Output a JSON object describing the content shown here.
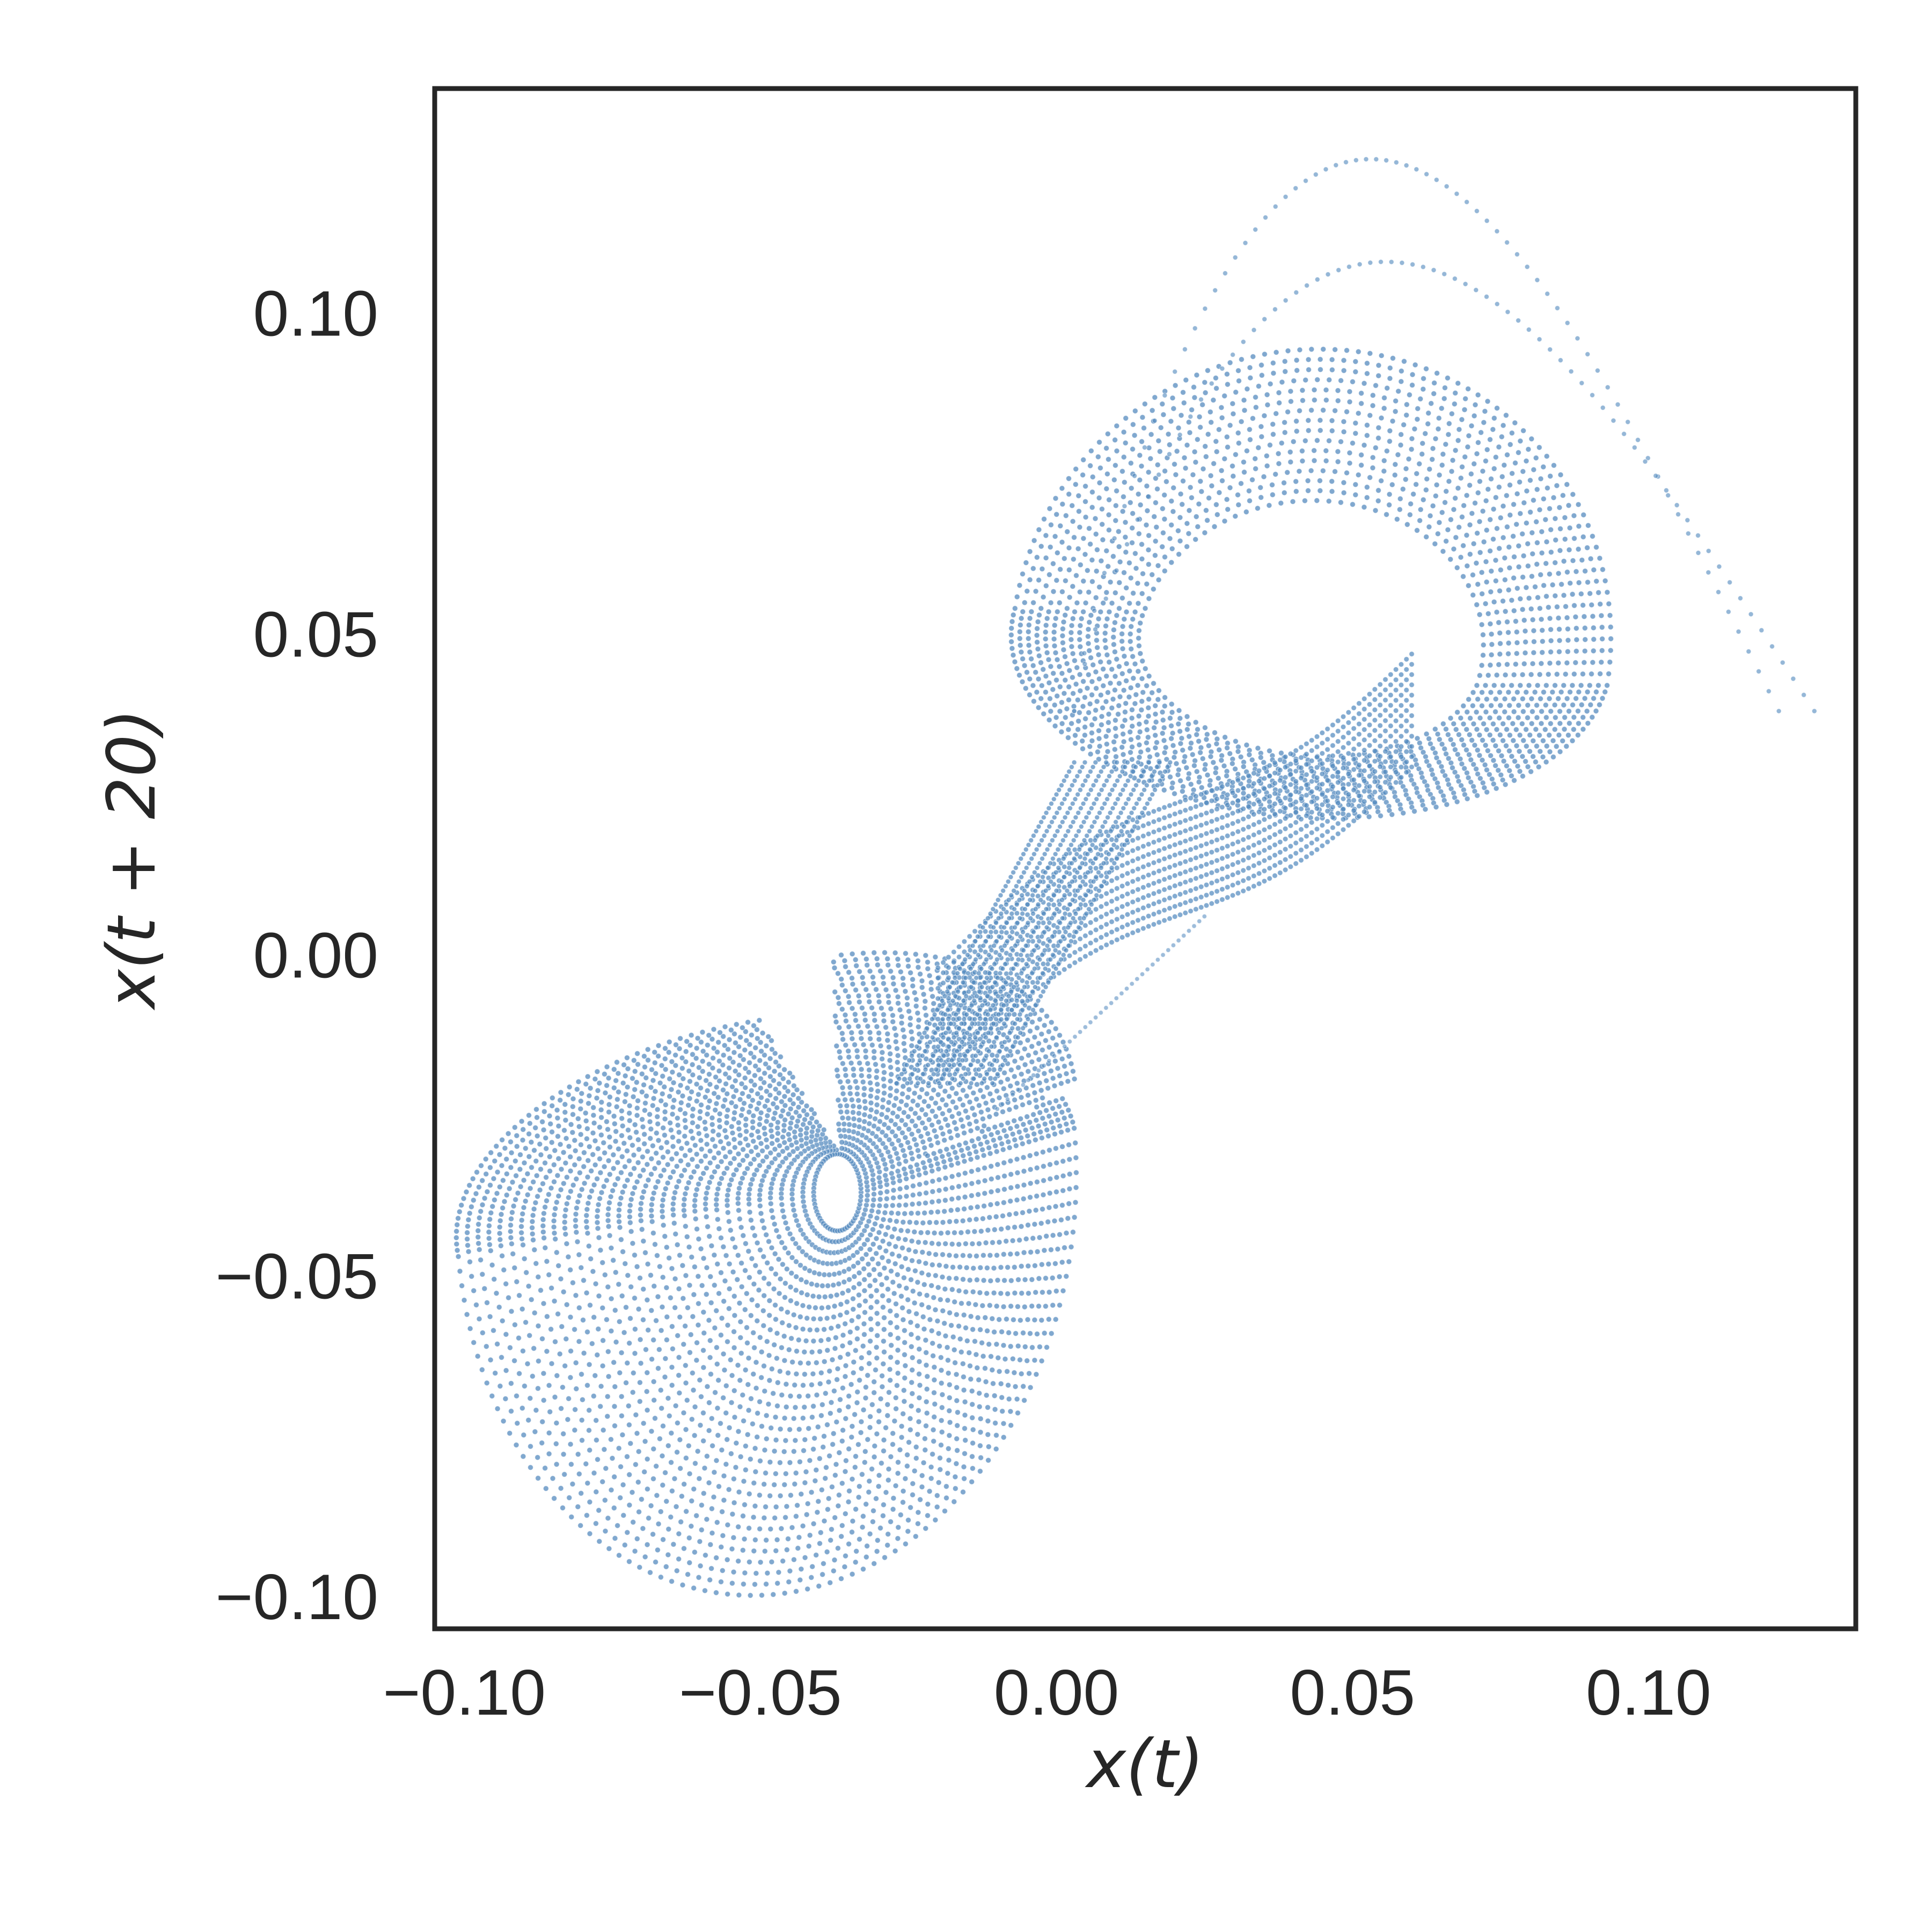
{
  "chart_data": {
    "type": "scatter",
    "title": "",
    "xlabel": "x(t)",
    "ylabel": "x(t + 20)",
    "xlim": [
      -0.105,
      0.135
    ],
    "ylim": [
      -0.105,
      0.135
    ],
    "x_ticks": [
      -0.1,
      -0.05,
      0.0,
      0.05,
      0.1
    ],
    "y_ticks": [
      -0.1,
      -0.05,
      0.0,
      0.05,
      0.1
    ],
    "x_tick_labels": [
      "−0.10",
      "−0.05",
      "0.00",
      "0.05",
      "0.10"
    ],
    "y_tick_labels": [
      "−0.10",
      "−0.05",
      "0.00",
      "0.05",
      "0.10"
    ],
    "grid": false,
    "marker_color": "#4f87bd",
    "marker_edge_color": "#ffffff",
    "description_points": {
      "lower_lobe_center": [
        -0.037,
        -0.037
      ],
      "lower_lobe_extent_x": [
        -0.096,
        -0.007
      ],
      "lower_lobe_extent_y": [
        -0.094,
        -0.012
      ],
      "upper_lobe_center": [
        0.043,
        0.048
      ],
      "upper_lobe_extent_x": [
        0.003,
        0.125
      ],
      "upper_lobe_extent_y": [
        0.022,
        0.124
      ],
      "crossing_point": [
        0.01,
        0.012
      ]
    },
    "series": [
      {
        "points_sample": [
          [
            -0.037,
            -0.037
          ],
          [
            -0.045,
            -0.03
          ],
          [
            -0.05,
            -0.04
          ],
          [
            -0.06,
            -0.045
          ],
          [
            -0.07,
            -0.05
          ],
          [
            -0.08,
            -0.055
          ],
          [
            -0.09,
            -0.055
          ],
          [
            -0.095,
            -0.045
          ],
          [
            -0.09,
            -0.04
          ],
          [
            -0.08,
            -0.035
          ],
          [
            -0.06,
            -0.031
          ],
          [
            -0.04,
            -0.02
          ],
          [
            -0.02,
            -0.005
          ],
          [
            0.0,
            0.007
          ],
          [
            0.01,
            0.012
          ],
          [
            0.02,
            0.014
          ],
          [
            0.035,
            0.025
          ],
          [
            0.05,
            0.035
          ],
          [
            0.065,
            0.04
          ],
          [
            0.075,
            0.05
          ],
          [
            0.07,
            0.065
          ],
          [
            0.055,
            0.078
          ],
          [
            0.04,
            0.081
          ],
          [
            0.025,
            0.07
          ],
          [
            0.015,
            0.05
          ],
          [
            0.01,
            0.025
          ],
          [
            0.008,
            0.015
          ],
          [
            0.0,
            -0.005
          ],
          [
            -0.01,
            -0.02
          ],
          [
            -0.015,
            -0.04
          ],
          [
            -0.02,
            -0.06
          ],
          [
            -0.03,
            -0.08
          ],
          [
            -0.04,
            -0.09
          ],
          [
            -0.05,
            -0.09
          ],
          [
            -0.06,
            -0.08
          ],
          [
            0.04,
            0.124
          ],
          [
            0.06,
            0.118
          ],
          [
            0.08,
            0.1
          ],
          [
            0.1,
            0.08
          ],
          [
            0.115,
            0.06
          ],
          [
            0.125,
            0.045
          ],
          [
            0.11,
            0.038
          ],
          [
            0.09,
            0.04
          ],
          [
            0.06,
            0.04
          ],
          [
            0.01,
            -0.005
          ],
          [
            0.005,
            -0.03
          ],
          [
            -0.005,
            -0.025
          ],
          [
            0.0,
            0.0
          ],
          [
            0.02,
            0.005
          ],
          [
            0.035,
            0.012
          ]
        ]
      }
    ]
  }
}
